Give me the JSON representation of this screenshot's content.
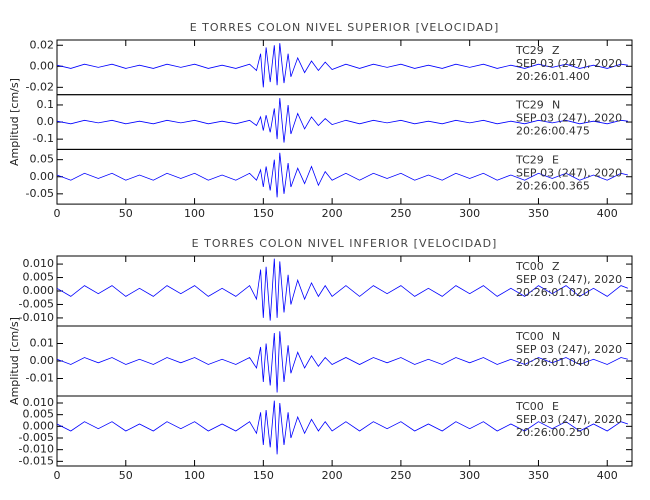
{
  "chart_data": [
    {
      "type": "seismogram",
      "title": "E TORRES COLON NIVEL SUPERIOR [VELOCIDAD]",
      "ylabel": "Amplitud [cm/s]",
      "xlim": [
        0,
        418
      ],
      "xticks": [
        0,
        50,
        100,
        150,
        200,
        250,
        300,
        350,
        400
      ],
      "x": [
        0,
        10,
        20,
        30,
        40,
        50,
        60,
        70,
        80,
        90,
        100,
        110,
        120,
        130,
        140,
        145,
        148,
        150,
        152,
        155,
        158,
        160,
        162,
        165,
        168,
        170,
        175,
        180,
        185,
        190,
        195,
        200,
        210,
        220,
        230,
        240,
        250,
        260,
        270,
        280,
        290,
        300,
        310,
        320,
        330,
        340,
        350,
        360,
        370,
        380,
        390,
        400,
        410,
        415
      ],
      "panels": [
        {
          "station": "TC29",
          "component": "Z",
          "date": "SEP 03 (247), 2020",
          "time": "20:26:01.400",
          "ylim": [
            -0.027,
            0.025
          ],
          "yticks": [
            0.02,
            {
              "value": 0,
              "label": "0.00"
            },
            -0.02
          ],
          "color": "#0000ff",
          "values": [
            0.001,
            -0.002,
            0.002,
            -0.001,
            0.002,
            -0.002,
            0.001,
            -0.002,
            0.002,
            -0.001,
            0.002,
            -0.002,
            0.001,
            -0.002,
            0.002,
            -0.004,
            0.012,
            -0.02,
            0.018,
            -0.015,
            0.02,
            -0.018,
            0.022,
            -0.016,
            0.012,
            -0.01,
            0.008,
            -0.006,
            0.005,
            -0.004,
            0.004,
            -0.003,
            0.002,
            -0.002,
            0.002,
            -0.001,
            0.002,
            -0.002,
            0.001,
            -0.002,
            0.002,
            -0.001,
            0.002,
            -0.002,
            0.001,
            -0.002,
            0.002,
            -0.001,
            0.002,
            -0.002,
            0.001,
            -0.002,
            0.002,
            0.001
          ]
        },
        {
          "station": "TC29",
          "component": "N",
          "date": "SEP 03 (247), 2020",
          "time": "20:26:00.475",
          "ylim": [
            -0.16,
            0.16
          ],
          "yticks": [
            0.1,
            {
              "value": 0,
              "label": "0.0"
            },
            -0.1
          ],
          "color": "#0000ff",
          "values": [
            0.005,
            -0.01,
            0.01,
            -0.005,
            0.01,
            -0.01,
            0.005,
            -0.01,
            0.01,
            -0.005,
            0.01,
            -0.01,
            0.005,
            -0.01,
            0.01,
            -0.02,
            0.03,
            -0.05,
            0.04,
            -0.06,
            0.08,
            -0.1,
            0.14,
            -0.12,
            0.1,
            -0.07,
            0.05,
            -0.04,
            0.03,
            -0.02,
            0.02,
            -0.015,
            0.01,
            -0.01,
            0.01,
            -0.005,
            0.01,
            -0.01,
            0.005,
            -0.01,
            0.01,
            -0.005,
            0.01,
            -0.01,
            0.005,
            -0.01,
            0.01,
            -0.005,
            0.01,
            -0.01,
            0.005,
            -0.01,
            0.01,
            0.005
          ]
        },
        {
          "station": "TC29",
          "component": "E",
          "date": "SEP 03 (247), 2020",
          "time": "20:26:00.365",
          "ylim": [
            -0.08,
            0.08
          ],
          "yticks": [
            0.05,
            {
              "value": 0,
              "label": "0.00"
            },
            -0.05
          ],
          "color": "#0000ff",
          "values": [
            0.005,
            -0.01,
            0.01,
            -0.005,
            0.01,
            -0.01,
            0.005,
            -0.01,
            0.01,
            -0.005,
            0.01,
            -0.01,
            0.005,
            -0.01,
            0.01,
            -0.01,
            0.02,
            -0.03,
            0.03,
            -0.04,
            0.05,
            -0.06,
            0.07,
            -0.05,
            0.04,
            -0.03,
            0.025,
            -0.02,
            0.03,
            -0.025,
            0.015,
            -0.01,
            0.01,
            -0.01,
            0.01,
            -0.005,
            0.01,
            -0.01,
            0.005,
            -0.01,
            0.01,
            -0.005,
            0.01,
            -0.01,
            0.005,
            -0.01,
            0.01,
            -0.005,
            0.01,
            -0.01,
            0.005,
            -0.01,
            0.01,
            0.005
          ]
        }
      ]
    },
    {
      "type": "seismogram",
      "title": "E TORRES COLON NIVEL INFERIOR [VELOCIDAD]",
      "ylabel": "Amplitud [cm/s]",
      "xlim": [
        0,
        418
      ],
      "xticks": [
        0,
        50,
        100,
        150,
        200,
        250,
        300,
        350,
        400
      ],
      "x": [
        0,
        10,
        20,
        30,
        40,
        50,
        60,
        70,
        80,
        90,
        100,
        110,
        120,
        130,
        140,
        145,
        148,
        150,
        152,
        155,
        158,
        160,
        162,
        165,
        168,
        170,
        175,
        180,
        185,
        190,
        195,
        200,
        210,
        220,
        230,
        240,
        250,
        260,
        270,
        280,
        290,
        300,
        310,
        320,
        330,
        340,
        350,
        360,
        370,
        380,
        390,
        400,
        410,
        415
      ],
      "panels": [
        {
          "station": "TC00",
          "component": "Z",
          "date": "SEP 03 (247), 2020",
          "time": "20:26:01.020",
          "ylim": [
            -0.013,
            0.013
          ],
          "yticks": [
            {
              "value": 0.01,
              "label": "0.010"
            },
            {
              "value": 0.005,
              "label": "0.005"
            },
            {
              "value": 0,
              "label": "0.000"
            },
            {
              "value": -0.005,
              "label": "-0.005"
            },
            {
              "value": -0.01,
              "label": "-0.010"
            }
          ],
          "color": "#0000ff",
          "values": [
            0.001,
            -0.002,
            0.002,
            -0.001,
            0.002,
            -0.002,
            0.001,
            -0.002,
            0.002,
            -0.001,
            0.002,
            -0.002,
            0.001,
            -0.002,
            0.002,
            -0.003,
            0.008,
            -0.01,
            0.009,
            -0.011,
            0.012,
            -0.01,
            0.011,
            -0.008,
            0.006,
            -0.005,
            0.004,
            -0.003,
            0.003,
            -0.002,
            0.002,
            -0.002,
            0.002,
            -0.002,
            0.002,
            -0.001,
            0.002,
            -0.002,
            0.001,
            -0.002,
            0.002,
            -0.001,
            0.002,
            -0.002,
            0.001,
            -0.002,
            0.002,
            -0.001,
            0.002,
            -0.002,
            0.001,
            -0.002,
            0.002,
            0.001
          ]
        },
        {
          "station": "TC00",
          "component": "N",
          "date": "SEP 03 (247), 2020",
          "time": "20:26:01.040",
          "ylim": [
            -0.02,
            0.02
          ],
          "yticks": [
            0.01,
            {
              "value": 0,
              "label": "0.00"
            },
            -0.01
          ],
          "color": "#0000ff",
          "values": [
            0.001,
            -0.002,
            0.002,
            -0.001,
            0.002,
            -0.002,
            0.001,
            -0.002,
            0.002,
            -0.001,
            0.002,
            -0.002,
            0.001,
            -0.002,
            0.002,
            -0.004,
            0.008,
            -0.012,
            0.01,
            -0.014,
            0.016,
            -0.018,
            0.017,
            -0.012,
            0.009,
            -0.007,
            0.005,
            -0.004,
            0.003,
            -0.003,
            0.002,
            -0.002,
            0.002,
            -0.002,
            0.002,
            -0.001,
            0.002,
            -0.002,
            0.001,
            -0.002,
            0.002,
            -0.001,
            0.002,
            -0.002,
            0.001,
            -0.002,
            0.002,
            -0.001,
            0.002,
            -0.002,
            0.001,
            -0.002,
            0.002,
            0.001
          ]
        },
        {
          "station": "TC00",
          "component": "E",
          "date": "SEP 03 (247), 2020",
          "time": "20:26:00.250",
          "ylim": [
            -0.017,
            0.013
          ],
          "yticks": [
            {
              "value": 0.01,
              "label": "0.010"
            },
            {
              "value": 0.005,
              "label": "0.005"
            },
            {
              "value": 0,
              "label": "0.000"
            },
            {
              "value": -0.005,
              "label": "-0.005"
            },
            {
              "value": -0.01,
              "label": "-0.010"
            },
            {
              "value": -0.015,
              "label": "-0.015"
            }
          ],
          "color": "#0000ff",
          "values": [
            0.001,
            -0.002,
            0.002,
            -0.001,
            0.002,
            -0.002,
            0.001,
            -0.002,
            0.002,
            -0.001,
            0.002,
            -0.002,
            0.001,
            -0.002,
            0.002,
            -0.003,
            0.006,
            -0.008,
            0.007,
            -0.009,
            0.011,
            -0.012,
            0.01,
            -0.008,
            0.006,
            -0.005,
            0.004,
            -0.003,
            0.003,
            -0.002,
            0.002,
            -0.002,
            0.002,
            -0.002,
            0.002,
            -0.001,
            0.002,
            -0.002,
            0.001,
            -0.002,
            0.002,
            -0.001,
            0.002,
            -0.002,
            0.001,
            -0.002,
            0.002,
            -0.001,
            0.002,
            -0.002,
            0.001,
            -0.002,
            0.002,
            0.001
          ]
        }
      ]
    }
  ]
}
